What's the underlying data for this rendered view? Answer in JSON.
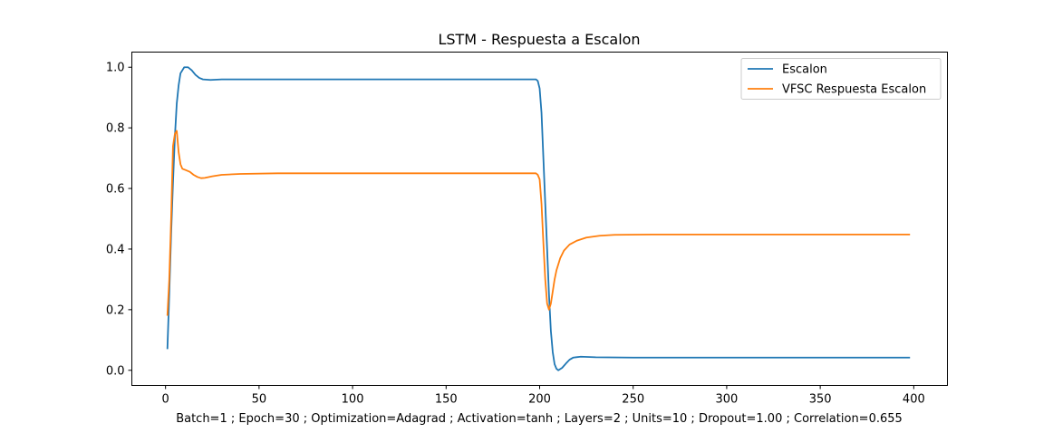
{
  "chart_data": {
    "type": "line",
    "title": "LSTM - Respuesta a Escalon",
    "xlabel": "Batch=1 ; Epoch=30 ; Optimization=Adagrad ; Activation=tanh ; Layers=2 ; Units=10 ; Dropout=1.00 ; Correlation=0.655",
    "ylabel": "",
    "xlim": [
      -18,
      418
    ],
    "ylim": [
      -0.05,
      1.05
    ],
    "xticks": [
      0,
      50,
      100,
      150,
      200,
      250,
      300,
      350,
      400
    ],
    "xtick_labels": [
      "0",
      "50",
      "100",
      "150",
      "200",
      "250",
      "300",
      "350",
      "400"
    ],
    "yticks": [
      0.0,
      0.2,
      0.4,
      0.6,
      0.8,
      1.0
    ],
    "ytick_labels": [
      "0.0",
      "0.2",
      "0.4",
      "0.6",
      "0.8",
      "1.0"
    ],
    "grid": false,
    "legend_position": "upper-right",
    "series": [
      {
        "name": "Escalon",
        "color": "#1f77b4",
        "points": [
          [
            1,
            0.07
          ],
          [
            2,
            0.25
          ],
          [
            3,
            0.45
          ],
          [
            4,
            0.62
          ],
          [
            5,
            0.77
          ],
          [
            6,
            0.88
          ],
          [
            7,
            0.94
          ],
          [
            8,
            0.98
          ],
          [
            10,
            1.0
          ],
          [
            12,
            1.0
          ],
          [
            14,
            0.99
          ],
          [
            16,
            0.975
          ],
          [
            18,
            0.965
          ],
          [
            20,
            0.96
          ],
          [
            24,
            0.958
          ],
          [
            30,
            0.96
          ],
          [
            60,
            0.96
          ],
          [
            100,
            0.96
          ],
          [
            150,
            0.96
          ],
          [
            190,
            0.96
          ],
          [
            198,
            0.96
          ],
          [
            199,
            0.955
          ],
          [
            200,
            0.93
          ],
          [
            201,
            0.85
          ],
          [
            202,
            0.7
          ],
          [
            203,
            0.55
          ],
          [
            204,
            0.4
          ],
          [
            205,
            0.25
          ],
          [
            206,
            0.13
          ],
          [
            207,
            0.06
          ],
          [
            208,
            0.02
          ],
          [
            209,
            0.005
          ],
          [
            210,
            0.0
          ],
          [
            212,
            0.008
          ],
          [
            214,
            0.022
          ],
          [
            216,
            0.035
          ],
          [
            218,
            0.042
          ],
          [
            222,
            0.045
          ],
          [
            230,
            0.043
          ],
          [
            250,
            0.042
          ],
          [
            300,
            0.042
          ],
          [
            350,
            0.042
          ],
          [
            398,
            0.042
          ]
        ]
      },
      {
        "name": "VFSC Respuesta Escalon",
        "color": "#ff7f0e",
        "points": [
          [
            1,
            0.18
          ],
          [
            2,
            0.3
          ],
          [
            3,
            0.5
          ],
          [
            4,
            0.74
          ],
          [
            5,
            0.78
          ],
          [
            6,
            0.79
          ],
          [
            7,
            0.72
          ],
          [
            8,
            0.68
          ],
          [
            9,
            0.665
          ],
          [
            11,
            0.66
          ],
          [
            13,
            0.655
          ],
          [
            15,
            0.645
          ],
          [
            17,
            0.638
          ],
          [
            19,
            0.634
          ],
          [
            21,
            0.635
          ],
          [
            25,
            0.64
          ],
          [
            30,
            0.645
          ],
          [
            40,
            0.648
          ],
          [
            60,
            0.65
          ],
          [
            100,
            0.65
          ],
          [
            150,
            0.65
          ],
          [
            198,
            0.65
          ],
          [
            199,
            0.645
          ],
          [
            200,
            0.63
          ],
          [
            201,
            0.55
          ],
          [
            202,
            0.42
          ],
          [
            203,
            0.3
          ],
          [
            204,
            0.22
          ],
          [
            205,
            0.2
          ],
          [
            206,
            0.22
          ],
          [
            207,
            0.26
          ],
          [
            208,
            0.3
          ],
          [
            209,
            0.33
          ],
          [
            211,
            0.37
          ],
          [
            213,
            0.395
          ],
          [
            216,
            0.415
          ],
          [
            220,
            0.428
          ],
          [
            225,
            0.438
          ],
          [
            232,
            0.444
          ],
          [
            240,
            0.447
          ],
          [
            260,
            0.448
          ],
          [
            300,
            0.448
          ],
          [
            350,
            0.448
          ],
          [
            398,
            0.448
          ]
        ]
      }
    ]
  }
}
